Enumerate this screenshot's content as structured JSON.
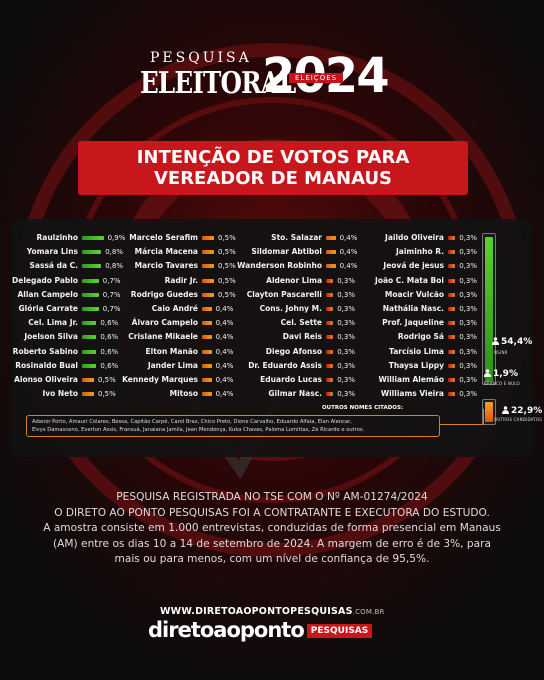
{
  "header": {
    "line1": "PESQUISA",
    "line2": "ELEITORAL",
    "year": "2024",
    "tag": "ELEIÇÕES"
  },
  "title": {
    "line1": "INTENÇÃO DE VOTOS PARA",
    "line2": "VEREADOR DE MANAUS"
  },
  "colors": {
    "accent": "#c8171c",
    "green": "#3fbf1f",
    "orange": "#e9861b",
    "red": "#d62b1f"
  },
  "chart_data": {
    "type": "bar",
    "candidates": [
      {
        "name": "Raulzinho",
        "value": 0.9,
        "label": "0,9%"
      },
      {
        "name": "Yomara Lins",
        "value": 0.8,
        "label": "0,8%"
      },
      {
        "name": "Sassá da C.",
        "value": 0.8,
        "label": "0,8%"
      },
      {
        "name": "Delegado Pablo",
        "value": 0.7,
        "label": "0,7%"
      },
      {
        "name": "Allan Campelo",
        "value": 0.7,
        "label": "0,7%"
      },
      {
        "name": "Glória Carrate",
        "value": 0.7,
        "label": "0,7%"
      },
      {
        "name": "Cel. Lima Jr.",
        "value": 0.6,
        "label": "0,6%"
      },
      {
        "name": "Joelson Silva",
        "value": 0.6,
        "label": "0,6%"
      },
      {
        "name": "Roberto Sabino",
        "value": 0.6,
        "label": "0,6%"
      },
      {
        "name": "Rosinaldo Bual",
        "value": 0.6,
        "label": "0,6%"
      },
      {
        "name": "Alonso Oliveira",
        "value": 0.5,
        "label": "0,5%"
      },
      {
        "name": "Ivo Neto",
        "value": 0.5,
        "label": "0,5%"
      },
      {
        "name": "Marcelo Serafim",
        "value": 0.5,
        "label": "0,5%"
      },
      {
        "name": "Márcia Macena",
        "value": 0.5,
        "label": "0,5%"
      },
      {
        "name": "Marcio Tavares",
        "value": 0.5,
        "label": "0,5%"
      },
      {
        "name": "Radir Jr.",
        "value": 0.5,
        "label": "0,5%"
      },
      {
        "name": "Rodrigo Guedes",
        "value": 0.5,
        "label": "0,5%"
      },
      {
        "name": "Caio André",
        "value": 0.4,
        "label": "0,4%"
      },
      {
        "name": "Álvaro Campelo",
        "value": 0.4,
        "label": "0,4%"
      },
      {
        "name": "Crislane Mikaele",
        "value": 0.4,
        "label": "0,4%"
      },
      {
        "name": "Elton Manão",
        "value": 0.4,
        "label": "0,4%"
      },
      {
        "name": "Jander Lima",
        "value": 0.4,
        "label": "0,4%"
      },
      {
        "name": "Kennedy Marques",
        "value": 0.4,
        "label": "0,4%"
      },
      {
        "name": "Mitoso",
        "value": 0.4,
        "label": "0,4%"
      },
      {
        "name": "Sto. Salazar",
        "value": 0.4,
        "label": "0,4%"
      },
      {
        "name": "Sildomar Abtibol",
        "value": 0.4,
        "label": "0,4%"
      },
      {
        "name": "Wanderson Robinho",
        "value": 0.4,
        "label": "0,4%"
      },
      {
        "name": "Aldenor Lima",
        "value": 0.3,
        "label": "0,3%"
      },
      {
        "name": "Clayton Pascarelli",
        "value": 0.3,
        "label": "0,3%"
      },
      {
        "name": "Cons. Johny M.",
        "value": 0.3,
        "label": "0,3%"
      },
      {
        "name": "Cel. Sette",
        "value": 0.3,
        "label": "0,3%"
      },
      {
        "name": "Davi Reis",
        "value": 0.3,
        "label": "0,3%"
      },
      {
        "name": "Diego Afonso",
        "value": 0.3,
        "label": "0,3%"
      },
      {
        "name": "Dr. Eduardo Assis",
        "value": 0.3,
        "label": "0,3%"
      },
      {
        "name": "Eduardo Lucas",
        "value": 0.3,
        "label": "0,3%"
      },
      {
        "name": "Gilmar Nasc.",
        "value": 0.3,
        "label": "0,3%"
      },
      {
        "name": "Jaildo Oliveira",
        "value": 0.3,
        "label": "0,3%"
      },
      {
        "name": "Jaiminho R.",
        "value": 0.3,
        "label": "0,3%"
      },
      {
        "name": "Jeová de jesus",
        "value": 0.3,
        "label": "0,3%"
      },
      {
        "name": "João C. Mata Boi",
        "value": 0.3,
        "label": "0,3%"
      },
      {
        "name": "Moacir Vulcão",
        "value": 0.3,
        "label": "0,3%"
      },
      {
        "name": "Nathália Nasc.",
        "value": 0.3,
        "label": "0,3%"
      },
      {
        "name": "Prof. Jaqueline",
        "value": 0.3,
        "label": "0,3%"
      },
      {
        "name": "Rodrigo Sá",
        "value": 0.3,
        "label": "0,3%"
      },
      {
        "name": "Tarcísio Lima",
        "value": 0.3,
        "label": "0,3%"
      },
      {
        "name": "Thaysa Lippy",
        "value": 0.3,
        "label": "0,3%"
      },
      {
        "name": "William Alemão",
        "value": 0.3,
        "label": "0,3%"
      },
      {
        "name": "Williams Vieira",
        "value": 0.3,
        "label": "0,3%"
      }
    ],
    "summary": [
      {
        "label": "NS/NR",
        "value": 54.4,
        "text": "54,4%"
      },
      {
        "label": "BRANCO E NULO",
        "value": 1.9,
        "text": "1,9%"
      },
      {
        "label": "OUTROS CANDIDATOS",
        "value": 22.9,
        "text": "22,9%"
      }
    ],
    "others_title": "OUTROS NOMES CITADOS:",
    "others_line1": "Adanor Porto, Amauri Colares, Bessa, Capitão Carpê, Carol Braz, Chico Preto, Dione Carvalho, Eduardo Alfaia, Elan Alencar,",
    "others_line2": "Elvys Damasceno, Everton Assis, Fransuá, Janaiana Jamila, Jean Mendonça, Kuka Chaves, Paloma Lomittas, Zé Ricardo e outros."
  },
  "footer": {
    "line1": "PESQUISA REGISTRADA NO TSE COM O Nº AM-01274/2024",
    "line2": "O DIRETO AO PONTO PESQUISAS FOI A CONTRATANTE E EXECUTORA DO ESTUDO.",
    "line3": "A amostra consiste em 1.000 entrevistas, conduzidas de forma presencial em Manaus",
    "line4": "(AM) entre os dias 10 a 14 de setembro de 2024. A margem de erro é de 3%, para",
    "line5": "mais ou para menos, com um nível de confiança de 95,5%.",
    "site": "WWW.DIRETOAOPONTOPESQUISAS",
    "site_suffix": ".COM.BR",
    "logo_text": "diretoaoponto",
    "logo_tag": "PESQUISAS"
  }
}
